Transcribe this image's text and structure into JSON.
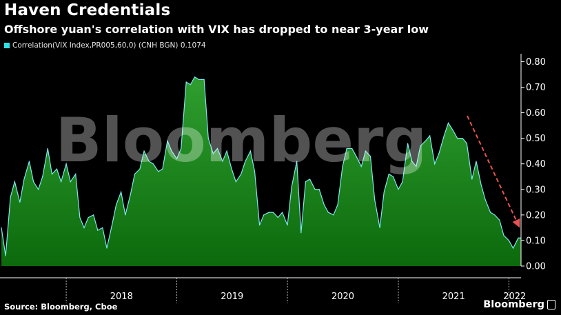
{
  "title": "Haven Credentials",
  "subtitle": "Offshore yuan's correlation with VIX has dropped to near 3-year low",
  "legend_label": "Correlation(VIX Index,PR005,60,0) (CNH BGN) 0.1074",
  "watermark": "Bloomberg",
  "source": "Source: Bloomberg, Cboe",
  "brand": "Bloomberg",
  "colors": {
    "fill_top": "#2f9e2f",
    "fill_bottom": "#0c6a0c",
    "line": "#7be9f0",
    "legend": "#2ee0e6",
    "arrow": "#e8534f",
    "background": "#000000"
  },
  "chart_data": {
    "type": "area",
    "legend": "Correlation(VIX Index,PR005,60,0) (CNH BGN) 0.1074",
    "ylim": [
      0,
      0.82
    ],
    "yticks": [
      "0.00",
      "0.10",
      "0.20",
      "0.30",
      "0.40",
      "0.50",
      "0.60",
      "0.70",
      "0.80"
    ],
    "xticks": [
      "2018",
      "2019",
      "2020",
      "2021",
      "2022"
    ],
    "x_range": [
      "2017-06-01",
      "2022-02-10"
    ],
    "last_value": 0.1074,
    "grid": "vertical dashed at year boundaries",
    "series": [
      {
        "x": [
          "2017-06-01",
          "2017-06-15",
          "2017-07-01",
          "2017-07-15",
          "2017-08-01",
          "2017-08-15",
          "2017-09-01",
          "2017-09-15",
          "2017-10-01",
          "2017-10-15",
          "2017-11-01",
          "2017-11-15",
          "2017-12-01",
          "2017-12-15",
          "2018-01-01",
          "2018-01-15",
          "2018-02-01",
          "2018-02-15",
          "2018-03-01",
          "2018-03-15",
          "2018-04-01",
          "2018-04-15",
          "2018-05-01",
          "2018-05-15",
          "2018-06-01",
          "2018-06-15",
          "2018-07-01",
          "2018-07-15",
          "2018-08-01",
          "2018-08-15",
          "2018-09-01",
          "2018-09-15",
          "2018-10-01",
          "2018-10-15",
          "2018-11-01",
          "2018-11-15",
          "2018-12-01",
          "2018-12-15",
          "2019-01-01",
          "2019-01-15",
          "2019-02-01",
          "2019-02-15",
          "2019-03-01",
          "2019-03-15",
          "2019-04-01",
          "2019-04-15",
          "2019-05-01",
          "2019-05-15",
          "2019-06-01",
          "2019-06-15",
          "2019-07-01",
          "2019-07-15",
          "2019-08-01",
          "2019-08-15",
          "2019-09-01",
          "2019-09-15",
          "2019-10-01",
          "2019-10-15",
          "2019-11-01",
          "2019-11-15",
          "2019-12-01",
          "2019-12-15",
          "2020-01-01",
          "2020-01-15",
          "2020-02-01",
          "2020-02-15",
          "2020-03-01",
          "2020-03-15",
          "2020-04-01",
          "2020-04-15",
          "2020-05-01",
          "2020-05-15",
          "2020-06-01",
          "2020-06-15",
          "2020-07-01",
          "2020-07-15",
          "2020-08-01",
          "2020-08-15",
          "2020-09-01",
          "2020-09-15",
          "2020-10-01",
          "2020-10-15",
          "2020-11-01",
          "2020-11-15",
          "2020-12-01",
          "2020-12-15",
          "2021-01-01",
          "2021-01-15",
          "2021-02-01",
          "2021-02-15",
          "2021-03-01",
          "2021-03-15",
          "2021-04-01",
          "2021-04-15",
          "2021-05-01",
          "2021-05-15",
          "2021-06-01",
          "2021-06-15",
          "2021-07-01",
          "2021-07-15",
          "2021-08-01",
          "2021-08-15",
          "2021-09-01",
          "2021-09-15",
          "2021-10-01",
          "2021-10-15",
          "2021-11-01",
          "2021-11-15",
          "2021-12-01",
          "2021-12-15",
          "2022-01-01",
          "2022-01-15",
          "2022-02-01",
          "2022-02-10"
        ],
        "values": [
          0.15,
          0.04,
          0.27,
          0.33,
          0.25,
          0.34,
          0.41,
          0.33,
          0.3,
          0.35,
          0.46,
          0.36,
          0.38,
          0.33,
          0.4,
          0.33,
          0.36,
          0.19,
          0.15,
          0.19,
          0.2,
          0.14,
          0.15,
          0.07,
          0.16,
          0.24,
          0.29,
          0.2,
          0.28,
          0.36,
          0.38,
          0.45,
          0.41,
          0.4,
          0.37,
          0.38,
          0.49,
          0.45,
          0.42,
          0.46,
          0.72,
          0.71,
          0.74,
          0.73,
          0.73,
          0.5,
          0.44,
          0.46,
          0.41,
          0.45,
          0.38,
          0.33,
          0.36,
          0.41,
          0.45,
          0.37,
          0.16,
          0.2,
          0.21,
          0.21,
          0.19,
          0.21,
          0.16,
          0.31,
          0.41,
          0.13,
          0.33,
          0.34,
          0.3,
          0.3,
          0.24,
          0.21,
          0.2,
          0.24,
          0.39,
          0.46,
          0.46,
          0.43,
          0.39,
          0.45,
          0.43,
          0.26,
          0.15,
          0.29,
          0.36,
          0.35,
          0.3,
          0.33,
          0.48,
          0.41,
          0.39,
          0.47,
          0.49,
          0.51,
          0.4,
          0.44,
          0.51,
          0.56,
          0.53,
          0.5,
          0.5,
          0.48,
          0.34,
          0.41,
          0.32,
          0.26,
          0.21,
          0.2,
          0.18,
          0.12,
          0.1,
          0.07,
          0.11,
          0.11
        ]
      }
    ],
    "annotation": "red dashed downward arrow indicating decline since late 2021"
  }
}
